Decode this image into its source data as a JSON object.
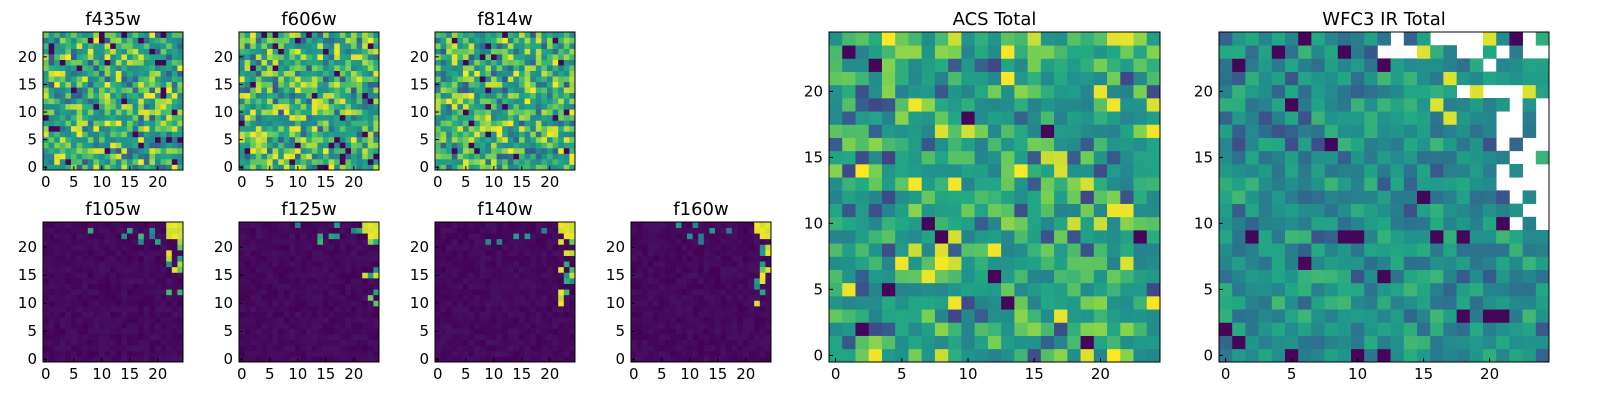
{
  "chart_data": {
    "type": "heatmap",
    "colormap": "viridis",
    "panels": [
      {
        "id": "f435w",
        "title": "f435w",
        "grid": [
          25,
          25
        ],
        "xticks": [
          "0",
          "5",
          "10",
          "15",
          "20"
        ],
        "yticks": [
          "0",
          "5",
          "10",
          "15",
          "20"
        ],
        "style": "noisy-high"
      },
      {
        "id": "f606w",
        "title": "f606w",
        "grid": [
          25,
          25
        ],
        "xticks": [
          "0",
          "5",
          "10",
          "15",
          "20"
        ],
        "yticks": [
          "0",
          "5",
          "10",
          "15",
          "20"
        ],
        "style": "noisy-high"
      },
      {
        "id": "f814w",
        "title": "f814w",
        "grid": [
          25,
          25
        ],
        "xticks": [
          "0",
          "5",
          "10",
          "15",
          "20"
        ],
        "yticks": [
          "0",
          "5",
          "10",
          "15",
          "20"
        ],
        "style": "noisy-high"
      },
      {
        "id": "f105w",
        "title": "f105w",
        "grid": [
          25,
          25
        ],
        "xticks": [
          "0",
          "5",
          "10",
          "15",
          "20"
        ],
        "yticks": [
          "0",
          "5",
          "10",
          "15",
          "20"
        ],
        "style": "dark-sparse"
      },
      {
        "id": "f125w",
        "title": "f125w",
        "grid": [
          25,
          25
        ],
        "xticks": [
          "0",
          "5",
          "10",
          "15",
          "20"
        ],
        "yticks": [
          "0",
          "5",
          "10",
          "15",
          "20"
        ],
        "style": "dark-sparse"
      },
      {
        "id": "f140w",
        "title": "f140w",
        "grid": [
          25,
          25
        ],
        "xticks": [
          "0",
          "5",
          "10",
          "15",
          "20"
        ],
        "yticks": [
          "0",
          "5",
          "10",
          "15",
          "20"
        ],
        "style": "dark-sparse"
      },
      {
        "id": "f160w",
        "title": "f160w",
        "grid": [
          25,
          25
        ],
        "xticks": [
          "0",
          "5",
          "10",
          "15",
          "20"
        ],
        "yticks": [
          "0",
          "5",
          "10",
          "15",
          "20"
        ],
        "style": "dark-sparse"
      },
      {
        "id": "acs_total",
        "title": "ACS Total",
        "grid": [
          25,
          25
        ],
        "xticks": [
          "0",
          "5",
          "10",
          "15",
          "20"
        ],
        "yticks": [
          "0",
          "5",
          "10",
          "15",
          "20"
        ],
        "style": "acs"
      },
      {
        "id": "wfc3_total",
        "title": "WFC3 IR Total",
        "grid": [
          25,
          25
        ],
        "xticks": [
          "0",
          "5",
          "10",
          "15",
          "20"
        ],
        "yticks": [
          "0",
          "5",
          "10",
          "15",
          "20"
        ],
        "style": "wfc3"
      }
    ]
  }
}
